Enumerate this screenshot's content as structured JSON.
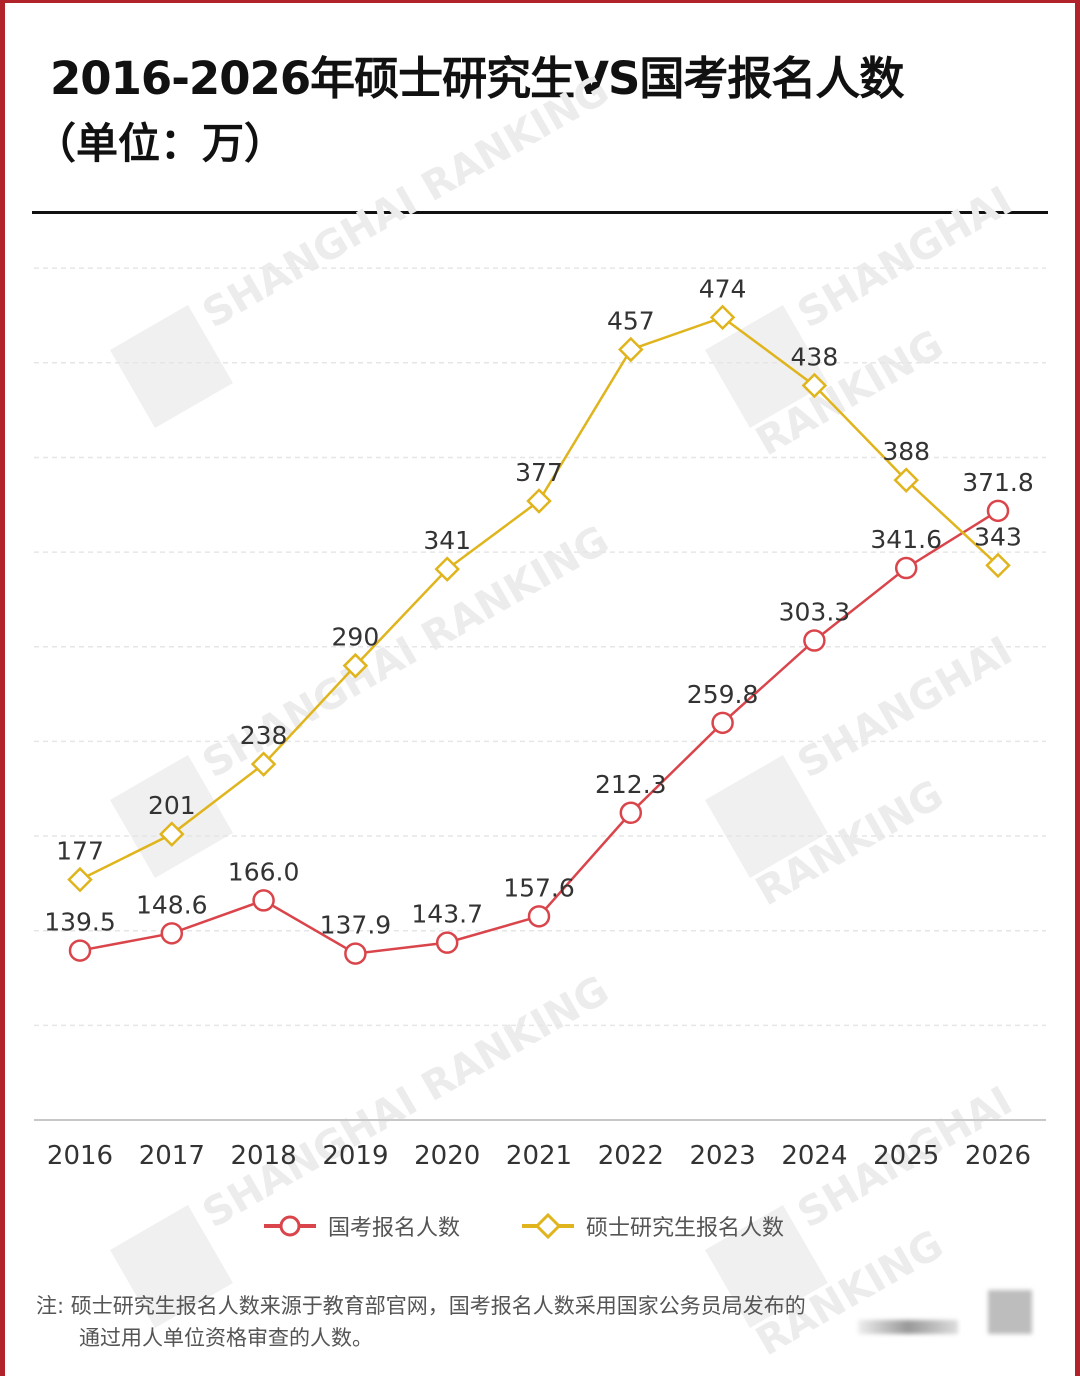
{
  "header": {
    "title": "2016-2026年硕士研究生VS国考报名人数",
    "subtitle": "（单位：万）"
  },
  "legend": {
    "series1": "国考报名人数",
    "series2": "硕士研究生报名人数"
  },
  "note": {
    "line1": "注: 硕士研究生报名人数来源于教育部官网，国考报名人数采用国家公务员局发布的",
    "line2": "通过用人单位资格审查的人数。"
  },
  "watermark": "SHANGHAI RANKING",
  "colors": {
    "series1": "#d9454b",
    "series2": "#e0b41c",
    "border": "#b0232a",
    "grid": "#e6e6e6",
    "axis": "#c8c8c8",
    "text": "#333333"
  },
  "chart_data": {
    "type": "line",
    "title": "2016-2026年硕士研究生VS国考报名人数",
    "subtitle": "（单位：万）",
    "xlabel": "",
    "ylabel": "",
    "categories": [
      "2016",
      "2017",
      "2018",
      "2019",
      "2020",
      "2021",
      "2022",
      "2023",
      "2024",
      "2025",
      "2026"
    ],
    "series": [
      {
        "name": "国考报名人数",
        "marker": "circle",
        "color": "#d9454b",
        "values": [
          139.5,
          148.6,
          166.0,
          137.9,
          143.7,
          157.6,
          212.3,
          259.8,
          303.3,
          341.6,
          371.8
        ],
        "labels": [
          "139.5",
          "148.6",
          "166.0",
          "137.9",
          "143.7",
          "157.6",
          "212.3",
          "259.8",
          "303.3",
          "341.6",
          "371.8"
        ]
      },
      {
        "name": "硕士研究生报名人数",
        "marker": "diamond",
        "color": "#e0b41c",
        "values": [
          177,
          201,
          238,
          290,
          341,
          377,
          457,
          474,
          438,
          388,
          343
        ],
        "labels": [
          "177",
          "201",
          "238",
          "290",
          "341",
          "377",
          "457",
          "474",
          "438",
          "388",
          "343"
        ]
      }
    ],
    "ylim": [
      50,
      500
    ],
    "grid": true,
    "gridlines": [
      100,
      150,
      200,
      250,
      300,
      350,
      400,
      450,
      500
    ],
    "y_tick_labels_visible": false,
    "legend_position": "bottom"
  }
}
